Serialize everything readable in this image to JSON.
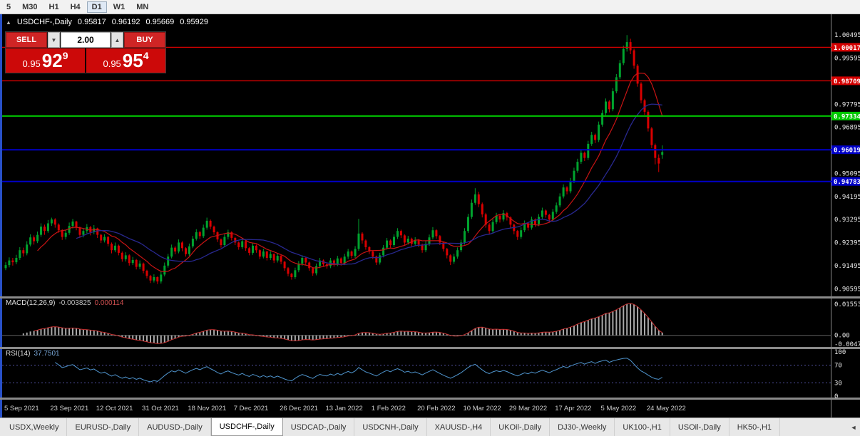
{
  "toolbar": {
    "periods": [
      "5",
      "M30",
      "H1",
      "H4",
      "D1",
      "W1",
      "MN"
    ],
    "active_period": "D1"
  },
  "chart_header": {
    "symbol": "USDCHF-,Daily",
    "open": "0.95817",
    "high": "0.96192",
    "low": "0.95669",
    "close": "0.95929"
  },
  "trade_panel": {
    "sell_label": "SELL",
    "buy_label": "BUY",
    "volume": "2.00",
    "bid": {
      "prefix": "0.95",
      "big": "92",
      "sup": "9"
    },
    "ask": {
      "prefix": "0.95",
      "big": "95",
      "sup": "4"
    }
  },
  "macd_panel": {
    "name": "MACD(12,26,9)",
    "main_value": "-0.003825",
    "signal_value": "0.000114",
    "axis_top": "0.015534",
    "axis_zero": "0.00",
    "axis_bottom": "-0.00474"
  },
  "rsi_panel": {
    "name": "RSI(14)",
    "value": "37.7501",
    "axis_labels": [
      "100",
      "70",
      "30",
      "0"
    ]
  },
  "tabs": {
    "items": [
      "USDX,Weekly",
      "EURUSD-,Daily",
      "AUDUSD-,Daily",
      "USDCHF-,Daily",
      "USDCAD-,Daily",
      "USDCNH-,Daily",
      "XAUUSD-,H4",
      "UKOil-,Daily",
      "DJ30-,Weekly",
      "UK100-,H1",
      "USOil-,Daily",
      "HK50-,H1"
    ],
    "active_index": 3,
    "scroll_left_arrow": "◄"
  },
  "colors": {
    "bull": "#00a32e",
    "bear": "#d80000",
    "ma_fast": "#c81414",
    "ma_slow": "#28288f",
    "macd_hist": "#a9a9a9",
    "macd_signal": "#c83232",
    "rsi_line": "#4f94cd",
    "axis_text": "#eaeaea",
    "date_text": "#cfcfcf",
    "separator": "#8a8a8a",
    "chart_bg": "#000000",
    "left_border": "#2850c8"
  },
  "chart_data": {
    "type": "candlestick",
    "symbol": "USDCHF-",
    "timeframe": "Daily",
    "last_quote": {
      "open": 0.95817,
      "high": 0.96192,
      "low": 0.95669,
      "close": 0.95929
    },
    "price_range": [
      0.903,
      1.0125
    ],
    "y_axis_ticks": [
      "1.00495",
      "0.99595",
      "0.98695",
      "0.97795",
      "0.96895",
      "0.95995",
      "0.95095",
      "0.94195",
      "0.93295",
      "0.92395",
      "0.91495",
      "0.90595"
    ],
    "horizontal_lines": [
      {
        "label": "1.00017",
        "value": 1.00017,
        "color": "#d40000",
        "width": 1.4
      },
      {
        "label": "0.98709",
        "value": 0.98709,
        "color": "#d40000",
        "width": 1.4
      },
      {
        "label": "0.97334",
        "value": 0.97334,
        "color": "#00c800",
        "width": 2
      },
      {
        "label": "0.96019",
        "value": 0.96019,
        "color": "#0000c8",
        "width": 2
      },
      {
        "label": "0.94783",
        "value": 0.94783,
        "color": "#0000c8",
        "width": 2
      }
    ],
    "x_axis_dates": [
      "5 Sep 2021",
      "23 Sep 2021",
      "12 Oct 2021",
      "31 Oct 2021",
      "18 Nov 2021",
      "7 Dec 2021",
      "26 Dec 2021",
      "13 Jan 2022",
      "1 Feb 2022",
      "20 Feb 2022",
      "10 Mar 2022",
      "29 Mar 2022",
      "17 Apr 2022",
      "5 May 2022",
      "24 May 2022"
    ],
    "x_tick_indices": [
      0,
      13,
      26,
      39,
      52,
      65,
      78,
      91,
      104,
      117,
      130,
      143,
      156,
      169,
      182
    ],
    "overlays": [
      {
        "name": "ma-fast",
        "type": "sma",
        "period": 10
      },
      {
        "name": "ma-slow",
        "type": "sma",
        "period": 21
      }
    ],
    "indicators": [
      {
        "name": "MACD",
        "params": "12,26,9",
        "main": -0.003825,
        "signal": 0.000114
      },
      {
        "name": "RSI",
        "params": "14",
        "value": 37.7501,
        "levels": [
          70,
          30
        ]
      }
    ],
    "ohlc": [
      [
        0.914,
        0.9163,
        0.9132,
        0.9152
      ],
      [
        0.9152,
        0.9182,
        0.9143,
        0.917
      ],
      [
        0.917,
        0.918,
        0.915,
        0.9163
      ],
      [
        0.9163,
        0.9192,
        0.9155,
        0.918
      ],
      [
        0.918,
        0.9222,
        0.9172,
        0.921
      ],
      [
        0.921,
        0.922,
        0.9185,
        0.9198
      ],
      [
        0.9198,
        0.9245,
        0.919,
        0.9232
      ],
      [
        0.9232,
        0.9272,
        0.9225,
        0.926
      ],
      [
        0.926,
        0.9268,
        0.9232,
        0.9245
      ],
      [
        0.9245,
        0.9283,
        0.9238,
        0.927
      ],
      [
        0.927,
        0.9315,
        0.9262,
        0.9302
      ],
      [
        0.9302,
        0.931,
        0.927,
        0.9285
      ],
      [
        0.9285,
        0.9328,
        0.9278,
        0.9315
      ],
      [
        0.9315,
        0.9337,
        0.9305,
        0.933
      ],
      [
        0.933,
        0.9335,
        0.9298,
        0.931
      ],
      [
        0.931,
        0.9315,
        0.9278,
        0.9288
      ],
      [
        0.9288,
        0.9292,
        0.925,
        0.9262
      ],
      [
        0.9262,
        0.929,
        0.9252,
        0.9278
      ],
      [
        0.9278,
        0.9318,
        0.927,
        0.9305
      ],
      [
        0.9305,
        0.9332,
        0.9295,
        0.9322
      ],
      [
        0.9322,
        0.9325,
        0.9288,
        0.9298
      ],
      [
        0.9298,
        0.9302,
        0.9258,
        0.927
      ],
      [
        0.927,
        0.9295,
        0.926,
        0.9285
      ],
      [
        0.9285,
        0.9312,
        0.9276,
        0.93
      ],
      [
        0.93,
        0.9305,
        0.9268,
        0.928
      ],
      [
        0.928,
        0.9308,
        0.9272,
        0.9295
      ],
      [
        0.9295,
        0.9298,
        0.9258,
        0.927
      ],
      [
        0.927,
        0.9274,
        0.9238,
        0.9248
      ],
      [
        0.9248,
        0.9272,
        0.924,
        0.9262
      ],
      [
        0.9262,
        0.9265,
        0.9225,
        0.9235
      ],
      [
        0.9235,
        0.924,
        0.9198,
        0.921
      ],
      [
        0.921,
        0.924,
        0.9202,
        0.9228
      ],
      [
        0.9228,
        0.9232,
        0.919,
        0.92
      ],
      [
        0.92,
        0.9205,
        0.9165,
        0.9175
      ],
      [
        0.9175,
        0.9202,
        0.9166,
        0.919
      ],
      [
        0.919,
        0.9194,
        0.915,
        0.916
      ],
      [
        0.916,
        0.9184,
        0.9152,
        0.9172
      ],
      [
        0.9172,
        0.9176,
        0.9135,
        0.9145
      ],
      [
        0.9145,
        0.917,
        0.9136,
        0.9158
      ],
      [
        0.9158,
        0.9162,
        0.912,
        0.913
      ],
      [
        0.913,
        0.9134,
        0.91,
        0.911
      ],
      [
        0.911,
        0.9114,
        0.9082,
        0.9092
      ],
      [
        0.9092,
        0.9116,
        0.9084,
        0.9105
      ],
      [
        0.9105,
        0.9108,
        0.9078,
        0.9088
      ],
      [
        0.9088,
        0.9126,
        0.908,
        0.9115
      ],
      [
        0.9115,
        0.9162,
        0.9108,
        0.915
      ],
      [
        0.915,
        0.9196,
        0.9142,
        0.9185
      ],
      [
        0.9185,
        0.9232,
        0.9178,
        0.922
      ],
      [
        0.922,
        0.9226,
        0.9194,
        0.9205
      ],
      [
        0.9205,
        0.9252,
        0.9198,
        0.924
      ],
      [
        0.924,
        0.9245,
        0.9206,
        0.9218
      ],
      [
        0.9218,
        0.9222,
        0.9185,
        0.9195
      ],
      [
        0.9195,
        0.9236,
        0.9188,
        0.9225
      ],
      [
        0.9225,
        0.9266,
        0.9218,
        0.9255
      ],
      [
        0.9255,
        0.9292,
        0.9248,
        0.928
      ],
      [
        0.928,
        0.9286,
        0.9254,
        0.9265
      ],
      [
        0.9265,
        0.931,
        0.9258,
        0.9298
      ],
      [
        0.9298,
        0.9337,
        0.929,
        0.9325
      ],
      [
        0.9325,
        0.933,
        0.9292,
        0.9302
      ],
      [
        0.9302,
        0.9306,
        0.927,
        0.928
      ],
      [
        0.928,
        0.9284,
        0.9242,
        0.9252
      ],
      [
        0.9252,
        0.9256,
        0.922,
        0.923
      ],
      [
        0.923,
        0.9272,
        0.9222,
        0.9262
      ],
      [
        0.9262,
        0.929,
        0.9252,
        0.928
      ],
      [
        0.928,
        0.9284,
        0.9248,
        0.9258
      ],
      [
        0.9258,
        0.9262,
        0.923,
        0.924
      ],
      [
        0.924,
        0.9244,
        0.9212,
        0.9222
      ],
      [
        0.9222,
        0.9256,
        0.9215,
        0.9245
      ],
      [
        0.9245,
        0.9248,
        0.9208,
        0.9218
      ],
      [
        0.9218,
        0.9222,
        0.919,
        0.92
      ],
      [
        0.92,
        0.9238,
        0.9192,
        0.9228
      ],
      [
        0.9228,
        0.9232,
        0.92,
        0.921
      ],
      [
        0.921,
        0.9214,
        0.9175,
        0.9185
      ],
      [
        0.9185,
        0.9216,
        0.9178,
        0.9205
      ],
      [
        0.9205,
        0.9208,
        0.917,
        0.918
      ],
      [
        0.918,
        0.9206,
        0.9172,
        0.9195
      ],
      [
        0.9195,
        0.9198,
        0.916,
        0.917
      ],
      [
        0.917,
        0.9198,
        0.9162,
        0.9188
      ],
      [
        0.9188,
        0.9192,
        0.9155,
        0.9165
      ],
      [
        0.9165,
        0.9168,
        0.913,
        0.914
      ],
      [
        0.914,
        0.9144,
        0.9108,
        0.9118
      ],
      [
        0.9118,
        0.9122,
        0.9095,
        0.9105
      ],
      [
        0.9105,
        0.9142,
        0.9098,
        0.9132
      ],
      [
        0.9132,
        0.9168,
        0.9124,
        0.9158
      ],
      [
        0.9158,
        0.919,
        0.915,
        0.918
      ],
      [
        0.918,
        0.9184,
        0.9152,
        0.9162
      ],
      [
        0.9162,
        0.9166,
        0.913,
        0.914
      ],
      [
        0.914,
        0.9144,
        0.911,
        0.912
      ],
      [
        0.912,
        0.9158,
        0.9112,
        0.9148
      ],
      [
        0.9148,
        0.918,
        0.914,
        0.917
      ],
      [
        0.917,
        0.9174,
        0.9145,
        0.9155
      ],
      [
        0.9155,
        0.916,
        0.9138,
        0.9148
      ],
      [
        0.9148,
        0.918,
        0.914,
        0.917
      ],
      [
        0.917,
        0.9174,
        0.9146,
        0.9155
      ],
      [
        0.9155,
        0.9188,
        0.9148,
        0.9178
      ],
      [
        0.9178,
        0.9182,
        0.915,
        0.916
      ],
      [
        0.916,
        0.9196,
        0.9152,
        0.9185
      ],
      [
        0.9185,
        0.9215,
        0.9176,
        0.9205
      ],
      [
        0.9205,
        0.9209,
        0.9178,
        0.9188
      ],
      [
        0.9188,
        0.9226,
        0.918,
        0.9215
      ],
      [
        0.9215,
        0.9332,
        0.9208,
        0.9275
      ],
      [
        0.9275,
        0.928,
        0.9236,
        0.9248
      ],
      [
        0.9248,
        0.9252,
        0.9212,
        0.9222
      ],
      [
        0.9222,
        0.9226,
        0.9195,
        0.9205
      ],
      [
        0.9205,
        0.9209,
        0.9175,
        0.9185
      ],
      [
        0.9185,
        0.9189,
        0.9152,
        0.9162
      ],
      [
        0.9162,
        0.92,
        0.9154,
        0.919
      ],
      [
        0.919,
        0.923,
        0.9182,
        0.922
      ],
      [
        0.922,
        0.9258,
        0.9212,
        0.9248
      ],
      [
        0.9248,
        0.9252,
        0.922,
        0.923
      ],
      [
        0.923,
        0.9272,
        0.9222,
        0.9262
      ],
      [
        0.9262,
        0.9296,
        0.9254,
        0.9285
      ],
      [
        0.9285,
        0.929,
        0.9258,
        0.9268
      ],
      [
        0.9268,
        0.9272,
        0.923,
        0.924
      ],
      [
        0.924,
        0.9266,
        0.9232,
        0.9255
      ],
      [
        0.9255,
        0.9259,
        0.9225,
        0.9235
      ],
      [
        0.9235,
        0.9261,
        0.9227,
        0.925
      ],
      [
        0.925,
        0.9254,
        0.9222,
        0.9232
      ],
      [
        0.9232,
        0.9236,
        0.92,
        0.921
      ],
      [
        0.921,
        0.9246,
        0.9202,
        0.9235
      ],
      [
        0.9235,
        0.9271,
        0.9227,
        0.926
      ],
      [
        0.926,
        0.93,
        0.9252,
        0.9288
      ],
      [
        0.9288,
        0.9292,
        0.9255,
        0.9265
      ],
      [
        0.9265,
        0.9269,
        0.923,
        0.924
      ],
      [
        0.924,
        0.9244,
        0.9205,
        0.9215
      ],
      [
        0.9215,
        0.9219,
        0.9178,
        0.919
      ],
      [
        0.919,
        0.9194,
        0.9152,
        0.9165
      ],
      [
        0.9165,
        0.9196,
        0.9157,
        0.9185
      ],
      [
        0.9185,
        0.9221,
        0.9177,
        0.921
      ],
      [
        0.921,
        0.9251,
        0.9202,
        0.924
      ],
      [
        0.924,
        0.9296,
        0.9232,
        0.9285
      ],
      [
        0.9285,
        0.9352,
        0.9277,
        0.934
      ],
      [
        0.934,
        0.9408,
        0.9332,
        0.9395
      ],
      [
        0.9395,
        0.9452,
        0.9387,
        0.9428
      ],
      [
        0.9428,
        0.9438,
        0.9378,
        0.939
      ],
      [
        0.939,
        0.9396,
        0.9338,
        0.935
      ],
      [
        0.935,
        0.9356,
        0.9298,
        0.931
      ],
      [
        0.931,
        0.9316,
        0.9272,
        0.9285
      ],
      [
        0.9285,
        0.9332,
        0.9277,
        0.932
      ],
      [
        0.932,
        0.9356,
        0.9312,
        0.9345
      ],
      [
        0.9345,
        0.935,
        0.9318,
        0.933
      ],
      [
        0.933,
        0.9366,
        0.9322,
        0.9355
      ],
      [
        0.9355,
        0.936,
        0.9326,
        0.9338
      ],
      [
        0.9338,
        0.9342,
        0.9298,
        0.931
      ],
      [
        0.931,
        0.9314,
        0.9272,
        0.9285
      ],
      [
        0.9285,
        0.9289,
        0.925,
        0.9262
      ],
      [
        0.9262,
        0.9299,
        0.9254,
        0.9288
      ],
      [
        0.9288,
        0.9326,
        0.928,
        0.9315
      ],
      [
        0.9315,
        0.9319,
        0.9287,
        0.9298
      ],
      [
        0.9298,
        0.9341,
        0.929,
        0.933
      ],
      [
        0.933,
        0.9334,
        0.9301,
        0.9312
      ],
      [
        0.9312,
        0.9351,
        0.9304,
        0.934
      ],
      [
        0.934,
        0.9376,
        0.9332,
        0.9365
      ],
      [
        0.9365,
        0.9369,
        0.9337,
        0.9348
      ],
      [
        0.9348,
        0.9352,
        0.9319,
        0.933
      ],
      [
        0.933,
        0.9371,
        0.9322,
        0.936
      ],
      [
        0.936,
        0.9396,
        0.9352,
        0.9385
      ],
      [
        0.9385,
        0.9432,
        0.9377,
        0.942
      ],
      [
        0.942,
        0.9467,
        0.9412,
        0.9455
      ],
      [
        0.9455,
        0.946,
        0.9428,
        0.944
      ],
      [
        0.944,
        0.9492,
        0.9432,
        0.948
      ],
      [
        0.948,
        0.9532,
        0.9472,
        0.952
      ],
      [
        0.952,
        0.9567,
        0.9512,
        0.9555
      ],
      [
        0.9555,
        0.9602,
        0.9547,
        0.959
      ],
      [
        0.959,
        0.9595,
        0.9558,
        0.957
      ],
      [
        0.957,
        0.9637,
        0.9562,
        0.9625
      ],
      [
        0.9625,
        0.9672,
        0.9617,
        0.966
      ],
      [
        0.966,
        0.9665,
        0.9628,
        0.964
      ],
      [
        0.964,
        0.9712,
        0.9632,
        0.97
      ],
      [
        0.97,
        0.9757,
        0.9692,
        0.9745
      ],
      [
        0.9745,
        0.9802,
        0.9737,
        0.979
      ],
      [
        0.979,
        0.9795,
        0.9748,
        0.976
      ],
      [
        0.976,
        0.9842,
        0.9752,
        0.983
      ],
      [
        0.983,
        0.9897,
        0.9822,
        0.9885
      ],
      [
        0.9885,
        0.9952,
        0.9877,
        0.994
      ],
      [
        0.994,
        1.0008,
        0.9932,
        0.9995
      ],
      [
        0.9995,
        1.0049,
        0.9985,
        1.0022
      ],
      [
        1.0022,
        1.0035,
        0.9975,
        0.999
      ],
      [
        0.999,
        0.9996,
        0.9918,
        0.993
      ],
      [
        0.993,
        0.9936,
        0.9848,
        0.986
      ],
      [
        0.986,
        0.9866,
        0.9783,
        0.9795
      ],
      [
        0.9795,
        0.9801,
        0.9738,
        0.975
      ],
      [
        0.975,
        0.9756,
        0.9673,
        0.9685
      ],
      [
        0.9685,
        0.9691,
        0.9608,
        0.962
      ],
      [
        0.962,
        0.9626,
        0.9545,
        0.957
      ],
      [
        0.957,
        0.9584,
        0.9515,
        0.9548
      ],
      [
        0.9582,
        0.9619,
        0.9567,
        0.9593
      ]
    ]
  }
}
